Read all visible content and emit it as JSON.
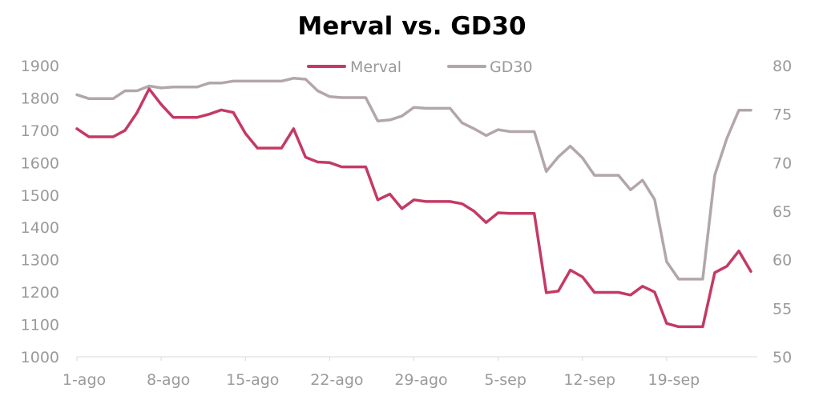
{
  "chart_data": {
    "type": "line",
    "title": "Merval vs. GD30",
    "x_tick_labels": [
      "1-ago",
      "8-ago",
      "15-ago",
      "22-ago",
      "29-ago",
      "5-sep",
      "12-sep",
      "19-sep"
    ],
    "legend_position": "top-center",
    "grid": false,
    "y_left": {
      "min": 1000,
      "max": 1900,
      "ticks": [
        "1000",
        "1100",
        "1200",
        "1300",
        "1400",
        "1500",
        "1600",
        "1700",
        "1800",
        "1900"
      ]
    },
    "y_right": {
      "min": 50,
      "max": 80,
      "ticks": [
        "50",
        "55",
        "60",
        "65",
        "70",
        "75",
        "80"
      ]
    },
    "series": [
      {
        "name": "Merval",
        "axis": "left",
        "color": "#c43a64",
        "values": [
          1705,
          1680,
          1680,
          1680,
          1700,
          1755,
          1828,
          1780,
          1740,
          1740,
          1740,
          1750,
          1763,
          1755,
          1690,
          1645,
          1645,
          1645,
          1705,
          1617,
          1602,
          1600,
          1587,
          1587,
          1587,
          1485,
          1503,
          1458,
          1485,
          1480,
          1480,
          1480,
          1473,
          1450,
          1415,
          1445,
          1443,
          1443,
          1443,
          1198,
          1203,
          1268,
          1247,
          1199,
          1199,
          1199,
          1191,
          1218,
          1200,
          1103,
          1093,
          1093,
          1093,
          1260,
          1280,
          1327,
          1264
        ]
      },
      {
        "name": "GD30",
        "axis": "right",
        "color": "#b2a6ac",
        "values": [
          77.0,
          76.6,
          76.6,
          76.6,
          77.4,
          77.4,
          77.9,
          77.7,
          77.8,
          77.8,
          77.8,
          78.2,
          78.2,
          78.4,
          78.4,
          78.4,
          78.4,
          78.4,
          78.7,
          78.6,
          77.4,
          76.8,
          76.7,
          76.7,
          76.7,
          74.3,
          74.4,
          74.8,
          75.7,
          75.6,
          75.6,
          75.6,
          74.1,
          73.5,
          72.8,
          73.4,
          73.2,
          73.2,
          73.2,
          69.1,
          70.6,
          71.7,
          70.5,
          68.7,
          68.7,
          68.7,
          67.2,
          68.2,
          66.2,
          59.8,
          58.0,
          58.0,
          58.0,
          68.7,
          72.5,
          75.4,
          75.4
        ]
      }
    ]
  }
}
